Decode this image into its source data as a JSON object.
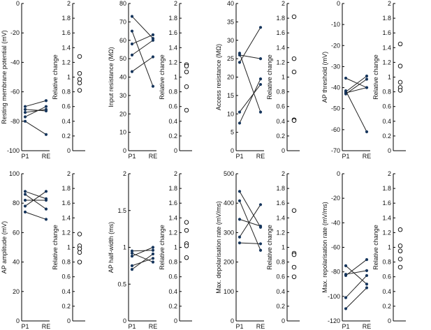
{
  "colors": {
    "paired_point": "#17365d",
    "line": "#222222",
    "axis": "#000000"
  },
  "relative_axis": {
    "ylabel": "Relative change",
    "ylim": [
      0,
      2
    ],
    "ticks": [
      0,
      0.2,
      0.4,
      0.6,
      0.8,
      1,
      1.2,
      1.4,
      1.6,
      1.8,
      2
    ]
  },
  "chart_data": [
    {
      "id": "rmp",
      "type": "line",
      "ylabel": "Resting membrane potential (mV)",
      "ylim": [
        -100,
        0
      ],
      "yticks": [
        -100,
        -80,
        -60,
        -40,
        -20,
        0
      ],
      "categories": [
        "P1",
        "RE"
      ],
      "pairs": [
        [
          -70,
          -66
        ],
        [
          -72,
          -73
        ],
        [
          -74,
          -72
        ],
        [
          -77,
          -70
        ],
        [
          -80,
          -89
        ]
      ],
      "relative": [
        1.28,
        1.05,
        0.97,
        0.92,
        0.82
      ]
    },
    {
      "id": "rin",
      "type": "line",
      "ylabel": "Input resistance (MΩ)",
      "ylim": [
        0,
        80
      ],
      "yticks": [
        0,
        10,
        20,
        30,
        40,
        50,
        60,
        70,
        80
      ],
      "categories": [
        "P1",
        "RE"
      ],
      "pairs": [
        [
          73,
          61
        ],
        [
          65,
          35
        ],
        [
          58,
          63
        ],
        [
          52,
          60
        ],
        [
          43,
          51
        ]
      ],
      "relative": [
        1.17,
        1.15,
        1.07,
        0.87,
        0.55
      ]
    },
    {
      "id": "ra",
      "type": "line",
      "ylabel": "Access resistance (MΩ)",
      "ylim": [
        0,
        40
      ],
      "yticks": [
        0,
        5,
        10,
        15,
        20,
        25,
        30,
        35,
        40
      ],
      "categories": [
        "P1",
        "RE"
      ],
      "pairs": [
        [
          26.5,
          10.5
        ],
        [
          26,
          25
        ],
        [
          24,
          33.5
        ],
        [
          10.5,
          18
        ],
        [
          7.5,
          19.5
        ]
      ],
      "relative": [
        1.82,
        1.25,
        1.07,
        0.42,
        0.41
      ]
    },
    {
      "id": "ap_threshold",
      "type": "line",
      "ylabel": "AP threshold (mV)",
      "ylim": [
        -70,
        0
      ],
      "yticks": [
        -70,
        -60,
        -50,
        -40,
        -30,
        -20,
        -10,
        0
      ],
      "categories": [
        "P1",
        "RE"
      ],
      "pairs": [
        [
          -35.5,
          -40
        ],
        [
          -42,
          -34.5
        ],
        [
          -42.5,
          -40
        ],
        [
          -43,
          -36
        ],
        [
          -41.5,
          -61
        ]
      ],
      "relative": [
        1.45,
        1.15,
        0.93,
        0.86,
        0.82
      ]
    },
    {
      "id": "ap_amplitude",
      "type": "line",
      "ylabel": "AP amplitude (mV)",
      "ylim": [
        0,
        100
      ],
      "yticks": [
        0,
        20,
        40,
        60,
        80,
        100
      ],
      "categories": [
        "P1",
        "RE"
      ],
      "pairs": [
        [
          88,
          83
        ],
        [
          86,
          76
        ],
        [
          82,
          82
        ],
        [
          78,
          88
        ],
        [
          74,
          69
        ]
      ],
      "relative": [
        1.18,
        1.02,
        0.98,
        0.93,
        0.8
      ]
    },
    {
      "id": "ap_halfwidth",
      "type": "line",
      "ylabel": "AP half-width (ms)",
      "ylim": [
        0,
        2
      ],
      "yticks": [
        0,
        0.5,
        1,
        1.5,
        2
      ],
      "categories": [
        "P1",
        "RE"
      ],
      "pairs": [
        [
          0.95,
          0.96
        ],
        [
          0.92,
          0.8
        ],
        [
          0.88,
          1.0
        ],
        [
          0.75,
          0.85
        ],
        [
          0.7,
          0.91
        ]
      ],
      "relative": [
        1.34,
        1.23,
        1.05,
        1.02,
        0.86
      ]
    },
    {
      "id": "max_depol",
      "type": "line",
      "ylabel": "Max. depolarisation rate (mV/ms)",
      "ylim": [
        0,
        500
      ],
      "yticks": [
        0,
        100,
        200,
        300,
        400,
        500
      ],
      "categories": [
        "P1",
        "RE"
      ],
      "pairs": [
        [
          440,
          318
        ],
        [
          408,
          240
        ],
        [
          345,
          322
        ],
        [
          285,
          395
        ],
        [
          265,
          262
        ]
      ],
      "relative": [
        1.5,
        0.92,
        0.9,
        0.73,
        0.6
      ]
    },
    {
      "id": "max_repol",
      "type": "line",
      "ylabel": "Max. repolarisation rate (mV/ms)",
      "ylim": [
        -120,
        0
      ],
      "yticks": [
        -120,
        -100,
        -80,
        -60,
        -40,
        -20,
        0
      ],
      "categories": [
        "P1",
        "RE"
      ],
      "pairs": [
        [
          -75,
          -90
        ],
        [
          -82,
          -79
        ],
        [
          -83,
          -70
        ],
        [
          -101,
          -83
        ],
        [
          -110,
          -93
        ]
      ],
      "relative": [
        1.24,
        1.02,
        0.95,
        0.84,
        0.73
      ]
    }
  ]
}
